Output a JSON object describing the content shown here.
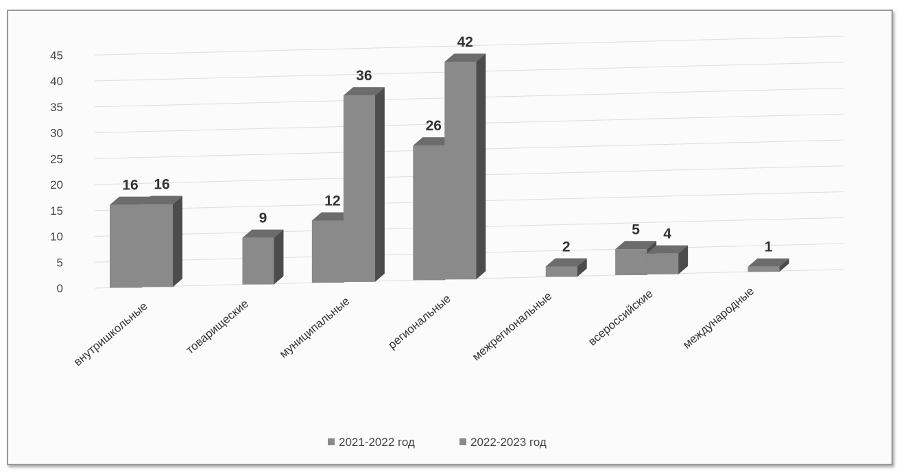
{
  "chart_data": {
    "type": "bar",
    "three_d": true,
    "categories": [
      "внутришкольные",
      "товарищеские",
      "муниципальные",
      "региональные",
      "межрегиональные",
      "всероссийские",
      "международные"
    ],
    "series": [
      {
        "name": "2021-2022 год",
        "values": [
          16,
          null,
          12,
          26,
          null,
          5,
          null
        ],
        "color": "#8a8a8a"
      },
      {
        "name": "2022-2023 год",
        "values": [
          16,
          9,
          36,
          42,
          2,
          4,
          1
        ],
        "color": "#8a8a8a"
      }
    ],
    "data_labels": [
      [
        "16",
        "",
        "12",
        "26",
        "",
        "5",
        ""
      ],
      [
        "16",
        "9",
        "36",
        "42",
        "2",
        "4",
        "1"
      ]
    ],
    "yticks": [
      "0",
      "5",
      "10",
      "15",
      "20",
      "25",
      "30",
      "35",
      "40",
      "45"
    ],
    "ylim": [
      0,
      45
    ],
    "grid": true,
    "legend_position": "bottom",
    "title": "",
    "xlabel": "",
    "ylabel": ""
  }
}
